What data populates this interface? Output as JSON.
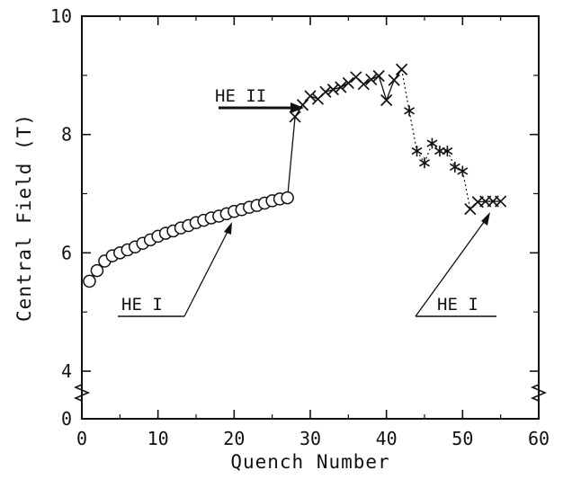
{
  "chart_data": {
    "type": "scatter",
    "title": "",
    "xlabel": "Quench Number",
    "ylabel": "Central Field (T)",
    "xlim": [
      0,
      60
    ],
    "ylim": [
      0,
      10
    ],
    "y_axis_break": true,
    "y_break_between": [
      0,
      4
    ],
    "grid": false,
    "x_ticks": [
      0,
      10,
      20,
      30,
      40,
      50,
      60
    ],
    "x_tick_labels": [
      "0",
      "10",
      "20",
      "30",
      "40",
      "50",
      "60"
    ],
    "y_ticks": [
      0,
      4,
      6,
      8,
      10
    ],
    "y_tick_labels": [
      "0",
      "4",
      "6",
      "8",
      "10"
    ],
    "series": [
      {
        "marker": "circle",
        "line": "solid",
        "x": [
          1,
          2,
          3,
          4,
          5,
          6,
          7,
          8,
          9,
          10,
          11,
          12,
          13,
          14,
          15,
          16,
          17,
          18,
          19,
          20,
          21,
          22,
          23,
          24,
          25,
          26,
          27
        ],
        "y": [
          5.52,
          5.7,
          5.86,
          5.95,
          6.0,
          6.05,
          6.1,
          6.16,
          6.22,
          6.28,
          6.33,
          6.37,
          6.42,
          6.46,
          6.51,
          6.55,
          6.59,
          6.62,
          6.66,
          6.7,
          6.73,
          6.77,
          6.8,
          6.84,
          6.88,
          6.91,
          6.93
        ]
      },
      {
        "marker": "x",
        "line": "solid",
        "x": [
          28,
          29,
          30,
          31,
          32,
          33,
          34,
          35,
          36,
          37,
          38,
          39,
          40,
          41,
          42
        ],
        "y": [
          8.3,
          8.5,
          8.65,
          8.6,
          8.72,
          8.76,
          8.8,
          8.87,
          8.97,
          8.85,
          8.93,
          8.99,
          8.58,
          8.92,
          9.1
        ]
      },
      {
        "marker": "asterisk",
        "line": "dotted",
        "x": [
          43,
          44,
          45,
          46,
          47,
          48,
          49,
          50
        ],
        "y": [
          8.4,
          7.72,
          7.52,
          7.85,
          7.72,
          7.72,
          7.45,
          7.38
        ]
      },
      {
        "marker": "x",
        "line": "solid",
        "x": [
          51,
          52,
          53,
          54,
          55
        ],
        "y": [
          6.74,
          6.86,
          6.87,
          6.87,
          6.87
        ]
      }
    ],
    "annotations": [
      {
        "text": "HE II",
        "arrow_to": [
          28.5,
          8.42
        ]
      },
      {
        "text": "HE I",
        "arrow_to": [
          19,
          6.52
        ]
      },
      {
        "text": "HE I",
        "arrow_to": [
          53,
          6.74
        ]
      }
    ]
  }
}
